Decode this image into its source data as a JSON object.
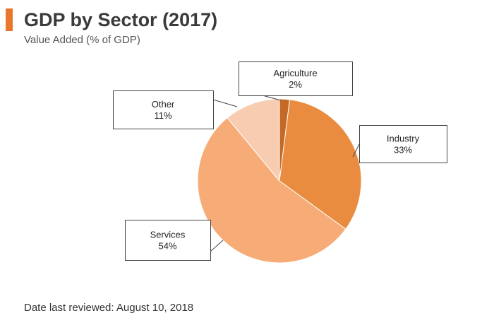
{
  "header": {
    "title": "GDP by Sector (2017)",
    "subtitle": "Value Added (% of GDP)",
    "accent_color": "#e8762b"
  },
  "footer": {
    "date_reviewed": "Date last reviewed: August 10, 2018"
  },
  "chart_data": {
    "type": "pie",
    "title": "GDP by Sector (2017)",
    "subtitle": "Value Added (% of GDP)",
    "start": "12 o'clock, clockwise",
    "slices": [
      {
        "name": "Agriculture",
        "value": 2,
        "label": "2%",
        "color": "#c46a26"
      },
      {
        "name": "Industry",
        "value": 33,
        "label": "33%",
        "color": "#e98c3f"
      },
      {
        "name": "Services",
        "value": 54,
        "label": "54%",
        "color": "#f7ab77"
      },
      {
        "name": "Other",
        "value": 11,
        "label": "11%",
        "color": "#f8ccb1"
      }
    ]
  }
}
